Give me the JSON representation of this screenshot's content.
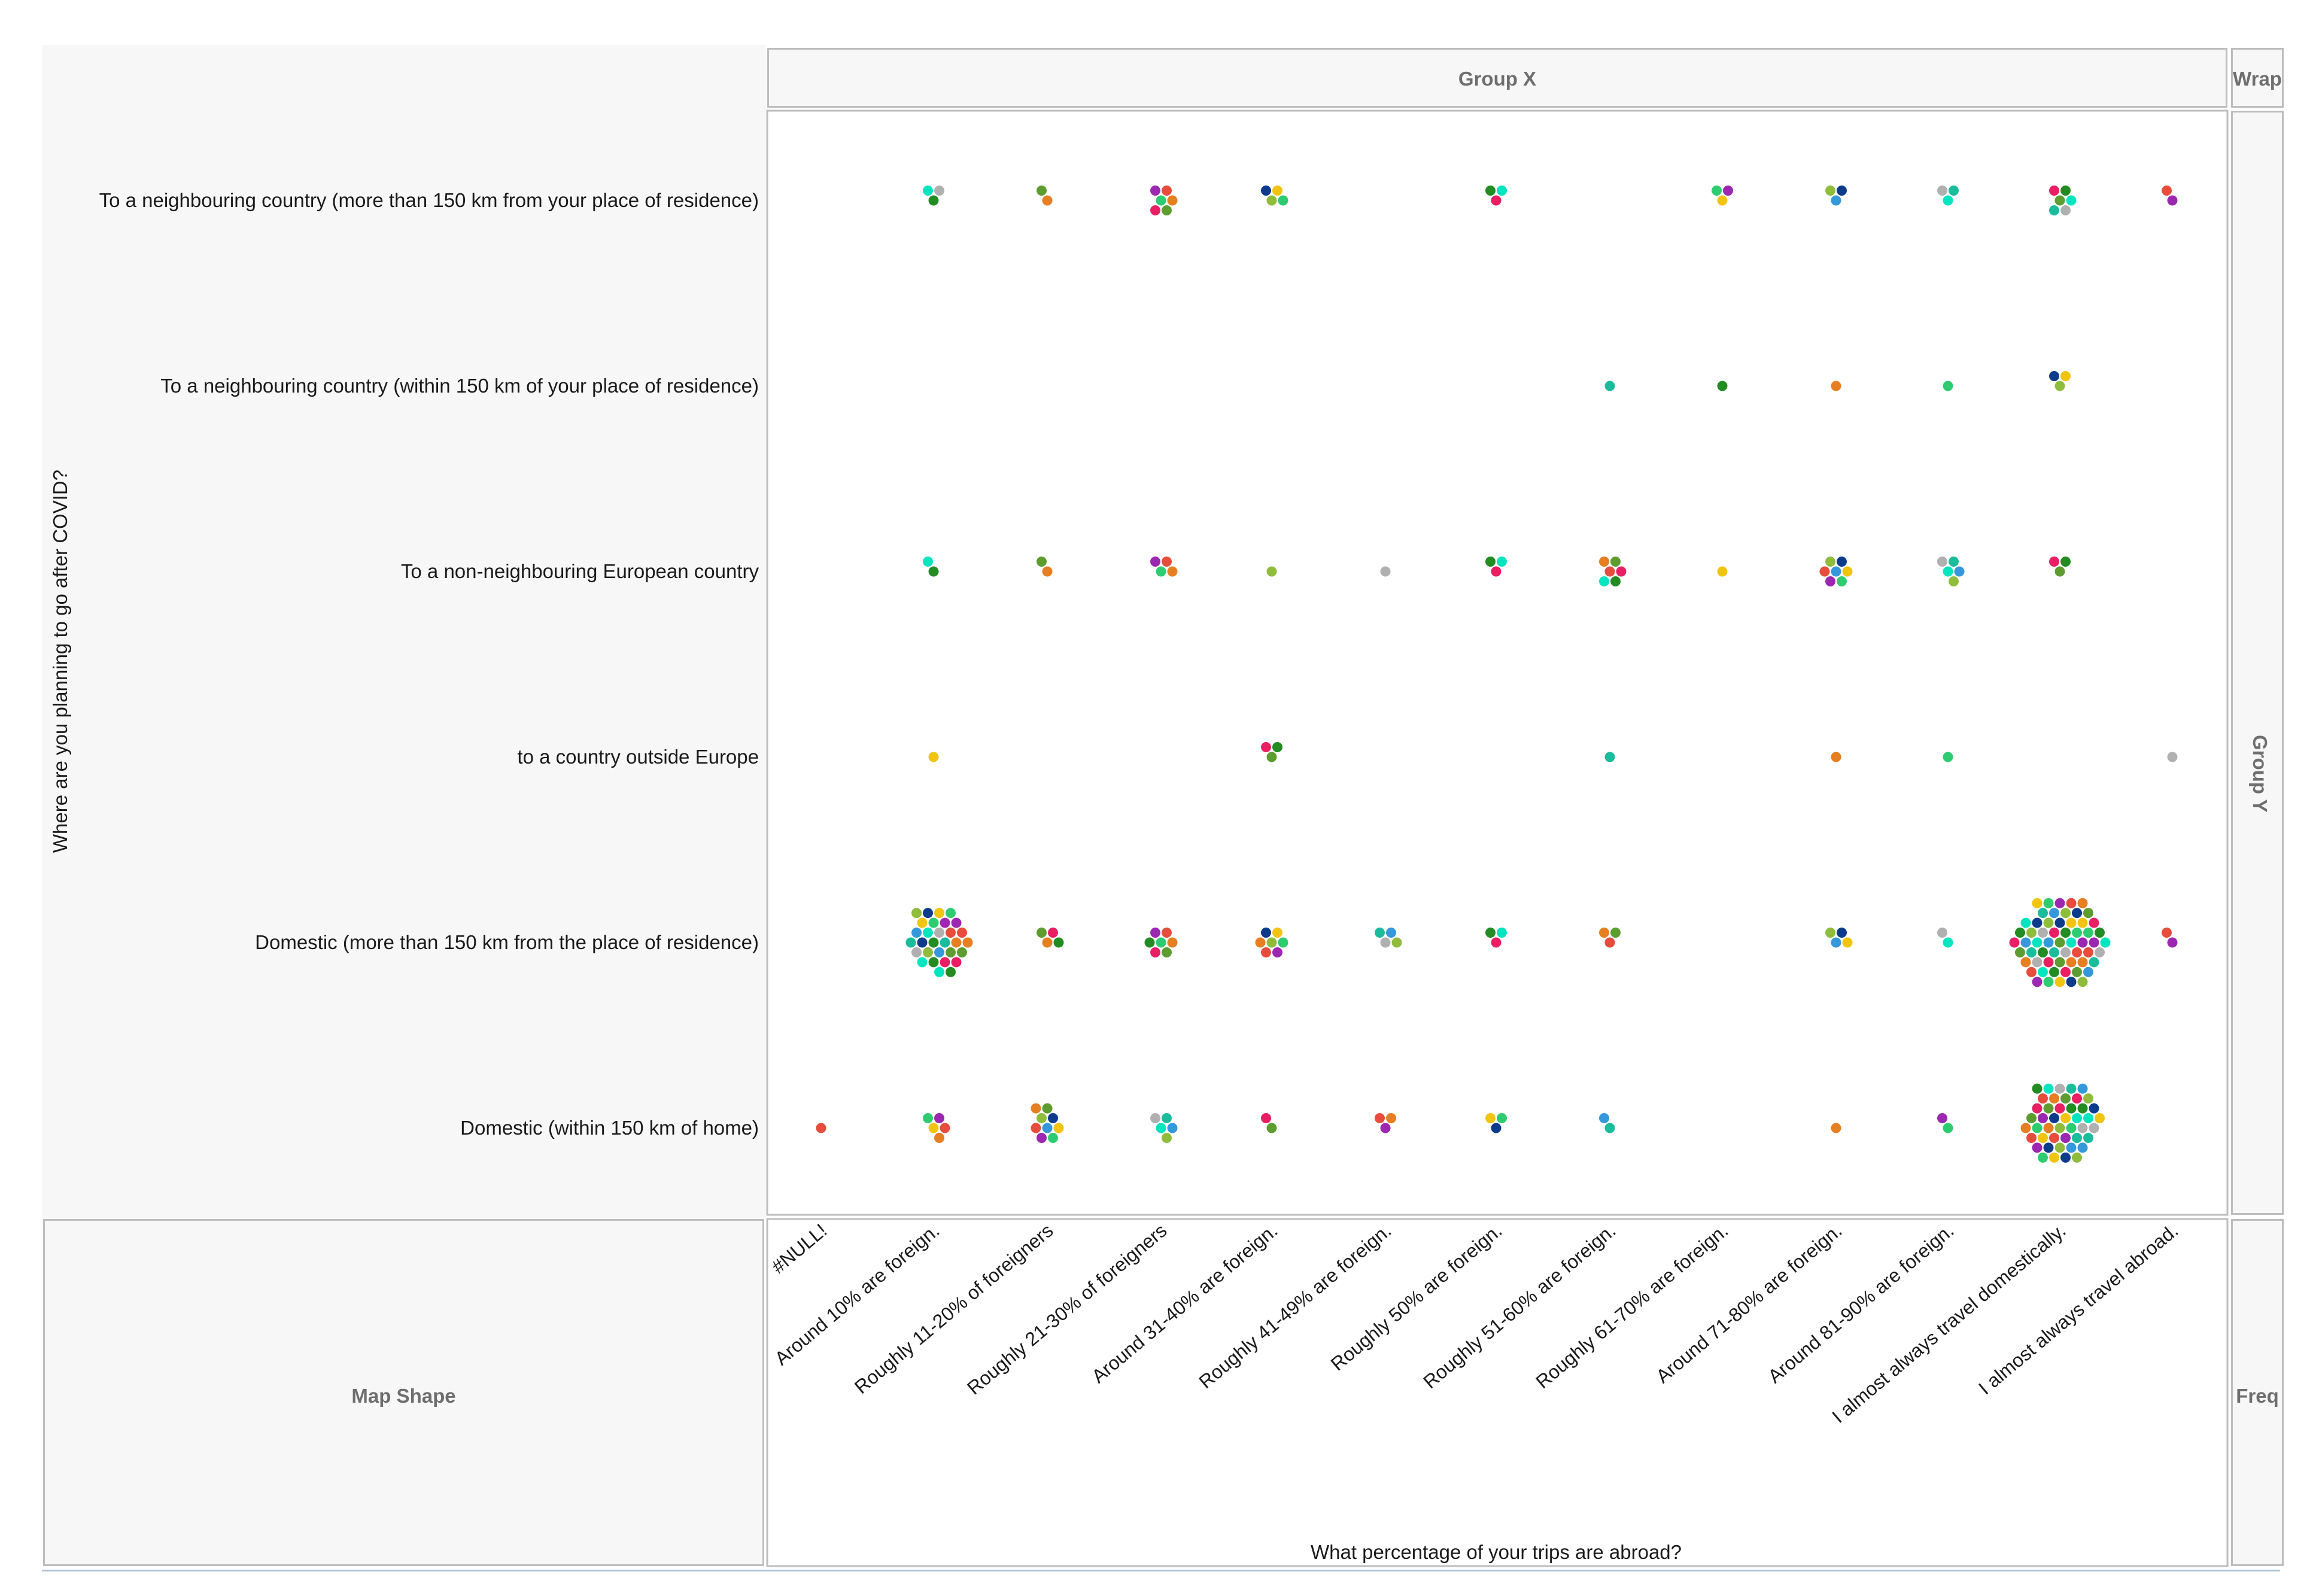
{
  "zones": {
    "group_x": "Group X",
    "wrap": "Wrap",
    "group_y": "Group Y",
    "map_shape": "Map Shape",
    "freq": "Freq"
  },
  "palette": [
    "#1abc9c",
    "#2ecc71",
    "#e91e63",
    "#3498db",
    "#9c27b0",
    "#228b22",
    "#8fbc3b",
    "#e74c3c",
    "#00e5c0",
    "#0d3b8c",
    "#e67e22",
    "#b0b0b0",
    "#f1c40f",
    "#5d9c2e"
  ],
  "chart_data": {
    "type": "scatter",
    "subtype": "dot-swarm",
    "xlabel": "What percentage of your trips are abroad?",
    "ylabel": "Where are you planning to go after COVID?",
    "x_categories": [
      "#NULL!",
      "Around 10% are foreign.",
      "Roughly 11-20% of foreigners",
      "Roughly 21-30% of foreigners",
      "Around 31-40% are foreign.",
      "Roughly 41-49% are foreign.",
      "Roughly 50% are foreign.",
      "Roughly 51-60% are foreign.",
      "Roughly 61-70% are foreign.",
      "Around 71-80% are foreign.",
      "Around 81-90% are foreign.",
      "I almost always travel domestically.",
      "I almost always travel abroad."
    ],
    "y_categories": [
      "To a neighbouring country (more than 150 km from your place of residence)",
      "To a neighbouring country (within 150 km of your place of residence)",
      "To a non-neighbouring European country",
      "to a country outside Europe",
      "Domestic (more than 150 km from the place of residence)",
      "Domestic (within 150 km of home)"
    ],
    "counts": [
      [
        0,
        3,
        2,
        6,
        4,
        0,
        3,
        0,
        3,
        3,
        3,
        6,
        2
      ],
      [
        0,
        0,
        0,
        0,
        0,
        0,
        0,
        1,
        1,
        1,
        1,
        3,
        0
      ],
      [
        0,
        2,
        2,
        4,
        1,
        1,
        3,
        6,
        1,
        7,
        5,
        3,
        0
      ],
      [
        0,
        1,
        0,
        0,
        3,
        0,
        0,
        1,
        0,
        1,
        1,
        0,
        1
      ],
      [
        0,
        30,
        4,
        7,
        7,
        4,
        3,
        3,
        0,
        4,
        2,
        60,
        2
      ],
      [
        1,
        5,
        9,
        5,
        2,
        3,
        3,
        2,
        0,
        1,
        2,
        45,
        0
      ]
    ]
  }
}
